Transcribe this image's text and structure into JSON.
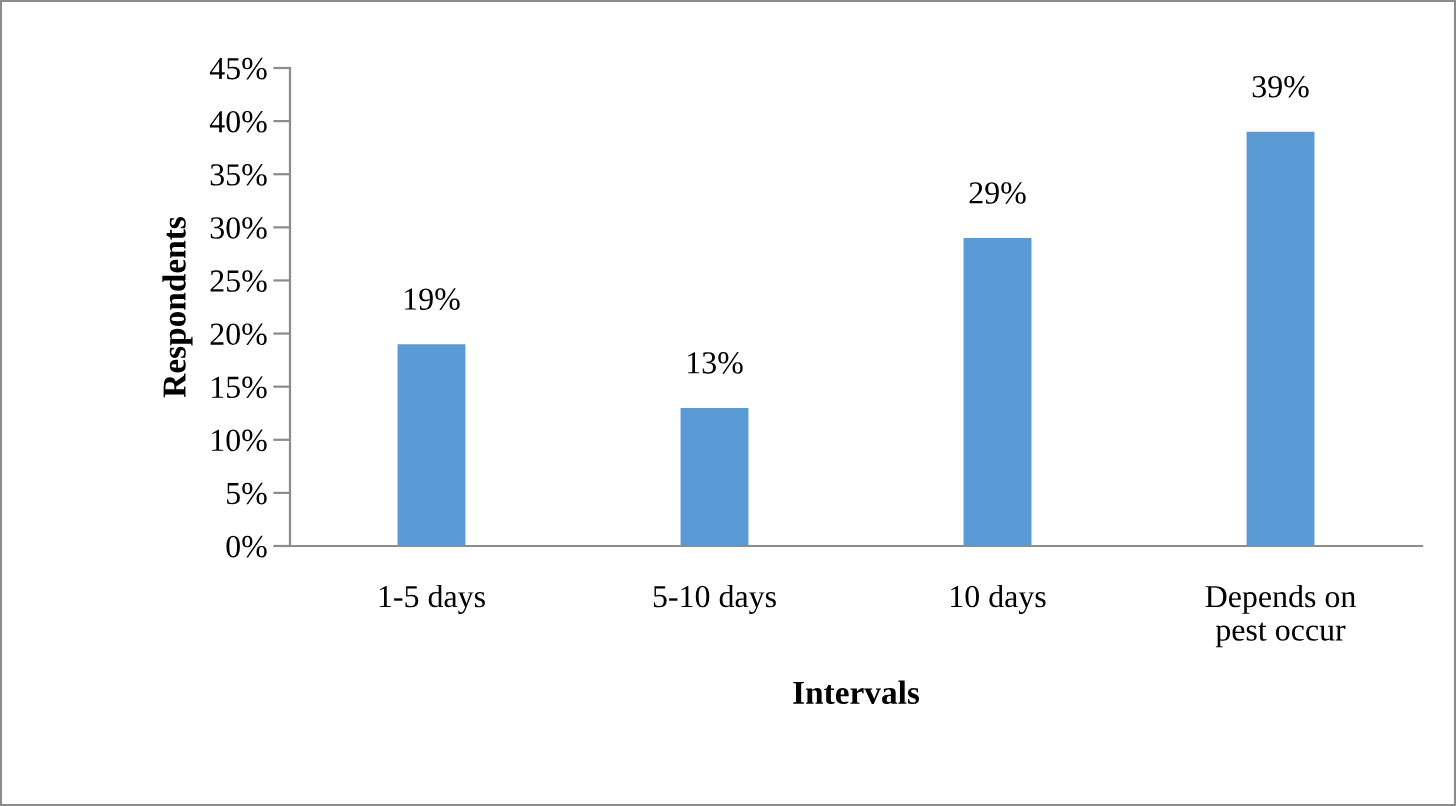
{
  "chart_data": {
    "type": "bar",
    "xlabel": "Intervals",
    "ylabel": "Respondents",
    "categories": [
      "1-5 days",
      "5-10 days",
      "10 days",
      "Depends on\npest occur"
    ],
    "values": [
      19,
      13,
      29,
      39
    ],
    "color": "#5b9bd5",
    "value_labels": [
      "19%",
      "13%",
      "29%",
      "39%"
    ],
    "ylim": [
      0,
      45
    ],
    "yticks": [
      {
        "value": 0,
        "label": "0%"
      },
      {
        "value": 5,
        "label": "5%"
      },
      {
        "value": 10,
        "label": "10%"
      },
      {
        "value": 15,
        "label": "15%"
      },
      {
        "value": 20,
        "label": "20%"
      },
      {
        "value": 25,
        "label": "25%"
      },
      {
        "value": 30,
        "label": "30%"
      },
      {
        "value": 35,
        "label": "35%"
      },
      {
        "value": 40,
        "label": "40%"
      },
      {
        "value": 45,
        "label": "45%"
      }
    ],
    "grid": false,
    "legend": false
  }
}
